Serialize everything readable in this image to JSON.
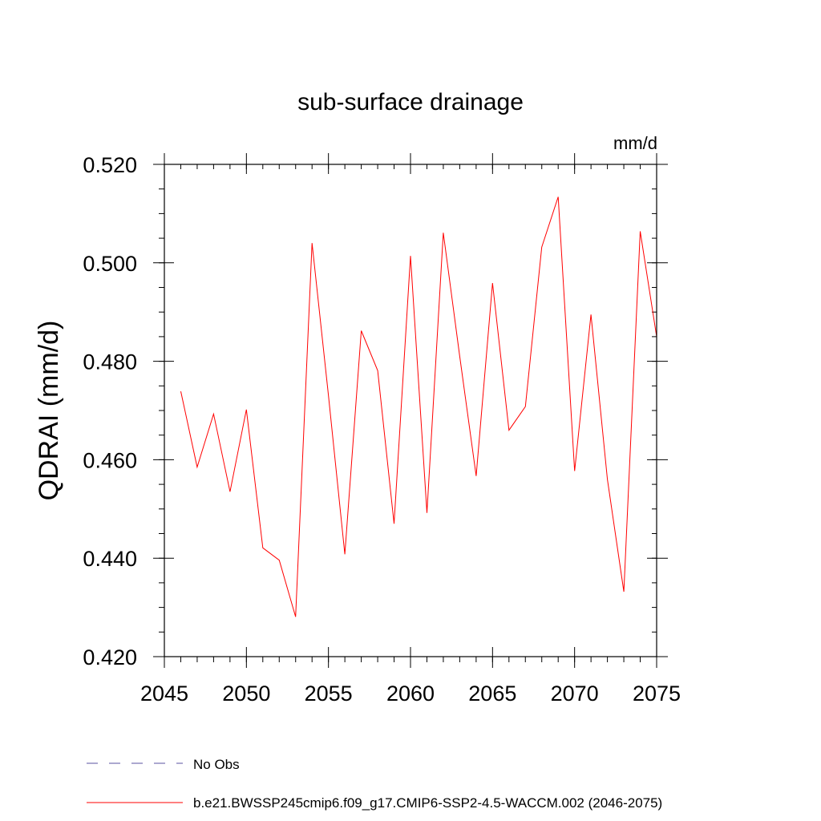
{
  "chart_data": {
    "type": "line",
    "title": "sub-surface drainage",
    "units_label": "mm/d",
    "ylabel": "QDRAI  (mm/d)",
    "xlabel": "",
    "xlim": [
      2045,
      2075
    ],
    "ylim": [
      0.42,
      0.52
    ],
    "x_major_ticks": [
      2045,
      2050,
      2055,
      2060,
      2065,
      2070,
      2075
    ],
    "x_tick_labels": [
      "2045",
      "2050",
      "2055",
      "2060",
      "2065",
      "2070",
      "2075"
    ],
    "x_minor_step": 1,
    "y_major_ticks": [
      0.42,
      0.44,
      0.46,
      0.48,
      0.5,
      0.52
    ],
    "y_tick_labels": [
      "0.420",
      "0.440",
      "0.460",
      "0.480",
      "0.500",
      "0.520"
    ],
    "y_minor_step": 0.005,
    "series": [
      {
        "name": "b.e21.BWSSP245cmip6.f09_g17.CMIP6-SSP2-4.5-WACCM.002 (2046-2075)",
        "color": "#ff0000",
        "x": [
          2046,
          2047,
          2048,
          2049,
          2050,
          2051,
          2052,
          2053,
          2054,
          2055,
          2056,
          2057,
          2058,
          2059,
          2060,
          2061,
          2062,
          2063,
          2064,
          2065,
          2066,
          2067,
          2068,
          2069,
          2070,
          2071,
          2072,
          2073,
          2074,
          2075
        ],
        "values": [
          0.4739,
          0.4585,
          0.4693,
          0.4535,
          0.4702,
          0.4421,
          0.4396,
          0.4281,
          0.504,
          0.473,
          0.4408,
          0.4862,
          0.4781,
          0.447,
          0.5014,
          0.4492,
          0.5061,
          0.481,
          0.4567,
          0.4959,
          0.466,
          0.4708,
          0.5032,
          0.5134,
          0.4577,
          0.4895,
          0.456,
          0.4332,
          0.5064,
          0.485
        ]
      }
    ],
    "legend": [
      {
        "label": "No Obs",
        "color": "#5a50a0",
        "style": "dashed"
      },
      {
        "label": "b.e21.BWSSP245cmip6.f09_g17.CMIP6-SSP2-4.5-WACCM.002 (2046-2075)",
        "color": "#ff0000",
        "style": "solid"
      }
    ],
    "legend_position": "bottom-left",
    "grid": false
  }
}
